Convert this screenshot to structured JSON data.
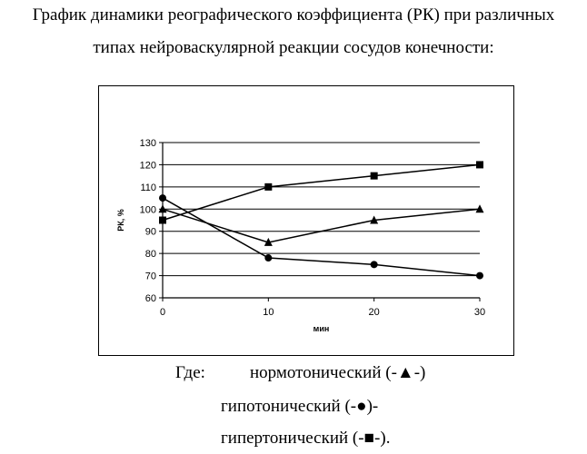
{
  "title_line1": "График динамики реографического коэффициента (РК) при различных",
  "title_line2": "типах нейроваскулярной реакции сосудов конечности:",
  "legend": {
    "where": "Где:",
    "items": [
      "нормотонический  (-▲-)",
      "гипотонический (-●)-",
      "гипертонический (-■-)."
    ]
  },
  "chart_data": {
    "type": "line",
    "x": [
      0,
      10,
      20,
      30
    ],
    "xlabel": "мин",
    "ylabel": "РК, %",
    "xlim": [
      0,
      30
    ],
    "ylim": [
      60,
      130
    ],
    "xticks": [
      0,
      10,
      20,
      30
    ],
    "yticks": [
      60,
      70,
      80,
      90,
      100,
      110,
      120,
      130
    ],
    "grid": "horizontal",
    "series": [
      {
        "marker": "triangle",
        "values": [
          100,
          85,
          95,
          100
        ]
      },
      {
        "marker": "circle",
        "values": [
          105,
          78,
          75,
          70
        ]
      },
      {
        "marker": "square",
        "values": [
          95,
          110,
          115,
          120
        ]
      }
    ]
  }
}
